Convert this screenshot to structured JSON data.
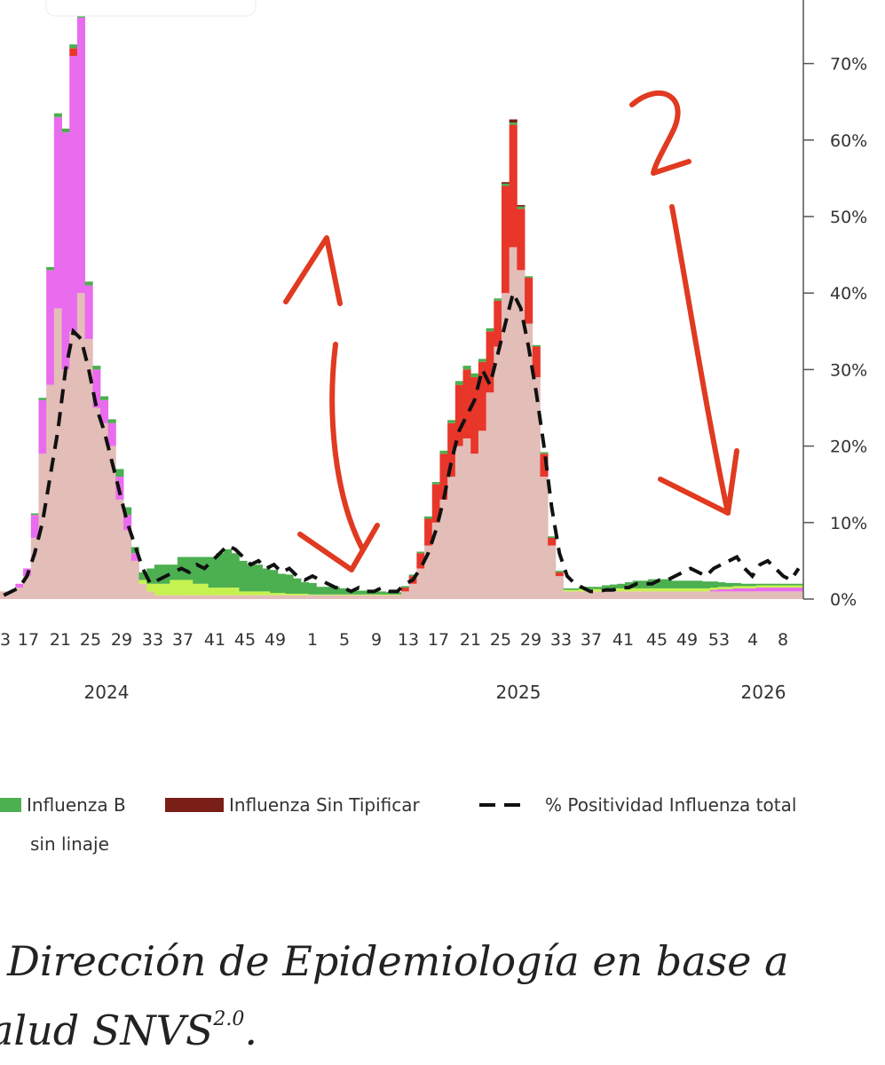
{
  "chart_data": {
    "type": "bar",
    "stacked": true,
    "y_axis_side": "right",
    "y_ticks": [
      "0%",
      "10%",
      "20%",
      "30%",
      "40%",
      "50%",
      "60%",
      "70%"
    ],
    "ylim": [
      0,
      0.8
    ],
    "x_ticks": [
      "3",
      "17",
      "21",
      "25",
      "29",
      "33",
      "37",
      "41",
      "45",
      "49",
      "1",
      "5",
      "9",
      "13",
      "17",
      "21",
      "25",
      "29",
      "33",
      "37",
      "41",
      "45",
      "49",
      "53",
      "4",
      "8"
    ],
    "year_labels": [
      "2024",
      "2025",
      "2026"
    ],
    "colors": {
      "base": "#e3bdb7",
      "a_h1n1": "#ea6cee",
      "a_h3n2": "#e8362a",
      "b_lineage": "#c6f24f",
      "b_no_lineage": "#4caf50",
      "untyped": "#7a1e18",
      "positivity_line": "#111111",
      "annotation": "#e03a21"
    },
    "series": [
      {
        "name": "",
        "key": "base",
        "values": [
          0.01,
          0.01,
          0.015,
          0.03,
          0.08,
          0.19,
          0.28,
          0.38,
          0.3,
          0.35,
          0.4,
          0.34,
          0.25,
          0.23,
          0.2,
          0.13,
          0.09,
          0.05,
          0.02,
          0.01,
          0.005,
          0.005,
          0.005,
          0.005,
          0.005,
          0.005,
          0.005,
          0.005,
          0.005,
          0.005,
          0.005,
          0.005,
          0.005,
          0.005,
          0.005,
          0.005,
          0.005,
          0.005,
          0.005,
          0.005,
          0.005,
          0.005,
          0.005,
          0.005,
          0.005,
          0.005,
          0.005,
          0.005,
          0.005,
          0.005,
          0.005,
          0.005,
          0.01,
          0.02,
          0.04,
          0.07,
          0.1,
          0.13,
          0.16,
          0.2,
          0.21,
          0.19,
          0.22,
          0.27,
          0.33,
          0.4,
          0.46,
          0.43,
          0.36,
          0.29,
          0.16,
          0.07,
          0.03,
          0.01,
          0.01,
          0.01,
          0.01,
          0.01,
          0.01,
          0.01,
          0.01,
          0.01,
          0.01,
          0.01,
          0.01,
          0.01,
          0.01,
          0.01,
          0.01,
          0.01,
          0.01,
          0.01,
          0.01,
          0.01,
          0.01,
          0.01,
          0.01,
          0.01,
          0.01,
          0.01,
          0.01,
          0.01,
          0.01,
          0.01
        ]
      },
      {
        "name": "",
        "key": "a_h1n1",
        "values": [
          0.0,
          0.0,
          0.005,
          0.01,
          0.03,
          0.07,
          0.15,
          0.25,
          0.31,
          0.36,
          0.36,
          0.07,
          0.05,
          0.03,
          0.03,
          0.03,
          0.02,
          0.01,
          0.0,
          0.0,
          0.0,
          0.0,
          0.0,
          0.0,
          0.0,
          0.0,
          0.0,
          0.0,
          0.0,
          0.0,
          0.0,
          0.0,
          0.0,
          0.0,
          0.0,
          0.0,
          0.0,
          0.0,
          0.0,
          0.0,
          0.0,
          0.0,
          0.0,
          0.0,
          0.0,
          0.0,
          0.0,
          0.0,
          0.0,
          0.0,
          0.0,
          0.0,
          0.0,
          0.0,
          0.0,
          0.0,
          0.0,
          0.0,
          0.0,
          0.0,
          0.0,
          0.0,
          0.0,
          0.0,
          0.0,
          0.0,
          0.0,
          0.0,
          0.0,
          0.0,
          0.0,
          0.0,
          0.0,
          0.0,
          0.0,
          0.0,
          0.0,
          0.0,
          0.0,
          0.0,
          0.0,
          0.0,
          0.0,
          0.0,
          0.0,
          0.0,
          0.0,
          0.0,
          0.0,
          0.0,
          0.0,
          0.0,
          0.002,
          0.003,
          0.003,
          0.004,
          0.004,
          0.004,
          0.005,
          0.005,
          0.005,
          0.005,
          0.005,
          0.005
        ]
      },
      {
        "name": "",
        "key": "a_h3n2",
        "values": [
          0.0,
          0.0,
          0.0,
          0.0,
          0.0,
          0.0,
          0.0,
          0.0,
          0.0,
          0.01,
          0.0,
          0.0,
          0.0,
          0.0,
          0.0,
          0.0,
          0.0,
          0.0,
          0.0,
          0.0,
          0.0,
          0.0,
          0.0,
          0.0,
          0.0,
          0.0,
          0.0,
          0.0,
          0.0,
          0.0,
          0.0,
          0.0,
          0.0,
          0.0,
          0.0,
          0.0,
          0.0,
          0.0,
          0.0,
          0.0,
          0.0,
          0.0,
          0.0,
          0.0,
          0.0,
          0.0,
          0.0,
          0.0,
          0.0,
          0.0,
          0.0,
          0.0,
          0.005,
          0.01,
          0.02,
          0.035,
          0.05,
          0.06,
          0.07,
          0.08,
          0.09,
          0.1,
          0.09,
          0.08,
          0.06,
          0.14,
          0.16,
          0.08,
          0.06,
          0.04,
          0.03,
          0.01,
          0.005,
          0.0,
          0.0,
          0.0,
          0.0,
          0.0,
          0.0,
          0.0,
          0.0,
          0.0,
          0.0,
          0.0,
          0.0,
          0.0,
          0.0,
          0.0,
          0.0,
          0.0,
          0.0,
          0.0,
          0.0,
          0.0,
          0.0,
          0.0,
          0.0,
          0.0,
          0.0,
          0.0,
          0.0,
          0.0,
          0.0,
          0.0
        ]
      },
      {
        "name": "",
        "key": "b_lineage",
        "values": [
          0.0,
          0.0,
          0.0,
          0.0,
          0.0,
          0.0,
          0.0,
          0.0,
          0.0,
          0.0,
          0.0,
          0.0,
          0.0,
          0.0,
          0.0,
          0.0,
          0.0,
          0.0,
          0.005,
          0.01,
          0.015,
          0.015,
          0.02,
          0.02,
          0.02,
          0.015,
          0.015,
          0.01,
          0.01,
          0.01,
          0.01,
          0.005,
          0.005,
          0.005,
          0.005,
          0.003,
          0.003,
          0.002,
          0.002,
          0.002,
          0.001,
          0.001,
          0.001,
          0.001,
          0.001,
          0.001,
          0.001,
          0.001,
          0.001,
          0.001,
          0.001,
          0.001,
          0.0,
          0.0,
          0.0,
          0.0,
          0.0,
          0.0,
          0.0,
          0.0,
          0.0,
          0.0,
          0.0,
          0.0,
          0.0,
          0.0,
          0.0,
          0.0,
          0.0,
          0.0,
          0.0,
          0.0,
          0.0,
          0.002,
          0.002,
          0.003,
          0.003,
          0.003,
          0.004,
          0.004,
          0.004,
          0.004,
          0.004,
          0.004,
          0.004,
          0.004,
          0.004,
          0.004,
          0.004,
          0.004,
          0.004,
          0.004,
          0.003,
          0.003,
          0.003,
          0.003,
          0.003,
          0.003,
          0.003,
          0.003,
          0.003,
          0.003,
          0.003,
          0.003
        ]
      },
      {
        "name": "Influenza B sin linaje",
        "key": "b_no_lineage",
        "values": [
          0.0,
          0.0,
          0.0,
          0.0,
          0.002,
          0.003,
          0.004,
          0.005,
          0.005,
          0.005,
          0.005,
          0.005,
          0.005,
          0.005,
          0.005,
          0.01,
          0.01,
          0.008,
          0.01,
          0.02,
          0.025,
          0.025,
          0.02,
          0.03,
          0.03,
          0.035,
          0.035,
          0.04,
          0.045,
          0.05,
          0.045,
          0.04,
          0.035,
          0.035,
          0.03,
          0.03,
          0.025,
          0.025,
          0.02,
          0.015,
          0.015,
          0.01,
          0.01,
          0.01,
          0.008,
          0.006,
          0.005,
          0.005,
          0.004,
          0.004,
          0.003,
          0.003,
          0.002,
          0.002,
          0.002,
          0.003,
          0.003,
          0.004,
          0.004,
          0.005,
          0.005,
          0.005,
          0.004,
          0.004,
          0.003,
          0.003,
          0.003,
          0.003,
          0.002,
          0.002,
          0.002,
          0.002,
          0.002,
          0.002,
          0.002,
          0.003,
          0.003,
          0.003,
          0.004,
          0.005,
          0.006,
          0.008,
          0.01,
          0.01,
          0.012,
          0.012,
          0.012,
          0.01,
          0.01,
          0.01,
          0.01,
          0.009,
          0.008,
          0.006,
          0.005,
          0.004,
          0.003,
          0.003,
          0.002,
          0.002,
          0.002,
          0.002,
          0.002,
          0.002
        ]
      },
      {
        "name": "Influenza Sin Tipificar",
        "key": "untyped",
        "values": [
          0.0,
          0.0,
          0.0,
          0.0,
          0.0,
          0.0,
          0.0,
          0.0,
          0.0,
          0.0,
          0.0,
          0.0,
          0.0,
          0.0,
          0.0,
          0.0,
          0.0,
          0.0,
          0.0,
          0.0,
          0.0,
          0.0,
          0.0,
          0.0,
          0.0,
          0.0,
          0.0,
          0.0,
          0.0,
          0.0,
          0.0,
          0.0,
          0.0,
          0.0,
          0.0,
          0.0,
          0.0,
          0.0,
          0.0,
          0.0,
          0.0,
          0.0,
          0.0,
          0.0,
          0.0,
          0.0,
          0.0,
          0.0,
          0.0,
          0.0,
          0.0,
          0.0,
          0.0,
          0.0,
          0.0,
          0.0,
          0.0,
          0.0,
          0.0,
          0.0,
          0.0,
          0.0,
          0.0,
          0.0,
          0.0,
          0.002,
          0.004,
          0.002,
          0.0,
          0.0,
          0.0,
          0.0,
          0.0,
          0.0,
          0.0,
          0.0,
          0.0,
          0.0,
          0.0,
          0.0,
          0.0,
          0.0,
          0.0,
          0.0,
          0.0,
          0.0,
          0.0,
          0.0,
          0.0,
          0.0,
          0.0,
          0.0,
          0.0,
          0.0,
          0.0,
          0.0,
          0.0,
          0.0,
          0.0,
          0.0,
          0.0,
          0.0,
          0.0,
          0.0
        ]
      },
      {
        "name": "% Positividad Influenza total",
        "key": "positivity",
        "type": "line",
        "values": [
          0.005,
          0.01,
          0.015,
          0.03,
          0.06,
          0.1,
          0.16,
          0.22,
          0.3,
          0.35,
          0.34,
          0.3,
          0.25,
          0.22,
          0.18,
          0.14,
          0.1,
          0.07,
          0.04,
          0.02,
          0.025,
          0.03,
          0.035,
          0.04,
          0.035,
          0.045,
          0.04,
          0.05,
          0.06,
          0.07,
          0.065,
          0.055,
          0.045,
          0.05,
          0.04,
          0.045,
          0.035,
          0.04,
          0.03,
          0.025,
          0.03,
          0.025,
          0.02,
          0.015,
          0.015,
          0.01,
          0.015,
          0.01,
          0.01,
          0.015,
          0.01,
          0.01,
          0.02,
          0.025,
          0.04,
          0.06,
          0.09,
          0.13,
          0.18,
          0.22,
          0.24,
          0.26,
          0.3,
          0.28,
          0.32,
          0.36,
          0.4,
          0.38,
          0.33,
          0.27,
          0.2,
          0.12,
          0.06,
          0.03,
          0.02,
          0.015,
          0.01,
          0.01,
          0.012,
          0.012,
          0.015,
          0.015,
          0.02,
          0.02,
          0.02,
          0.025,
          0.025,
          0.03,
          0.035,
          0.04,
          0.035,
          0.03,
          0.04,
          0.045,
          0.05,
          0.055,
          0.04,
          0.03,
          0.045,
          0.05,
          0.04,
          0.03,
          0.025,
          0.04
        ]
      }
    ],
    "legend": {
      "items": [
        {
          "label": "Influenza B",
          "key": "b_no_lineage"
        },
        {
          "label": "Influenza Sin Tipificar",
          "key": "untyped"
        },
        {
          "label": "% Positividad Influenza total",
          "key": "positivity"
        }
      ],
      "sub_label": "sin linaje"
    },
    "annotations": [
      "1",
      "2"
    ]
  },
  "source": {
    "line1": "Dirección de Epidemiología en base a",
    "line2_prefix": "alud SNVS",
    "line2_sup": "2.0",
    "line2_suffix": "."
  }
}
